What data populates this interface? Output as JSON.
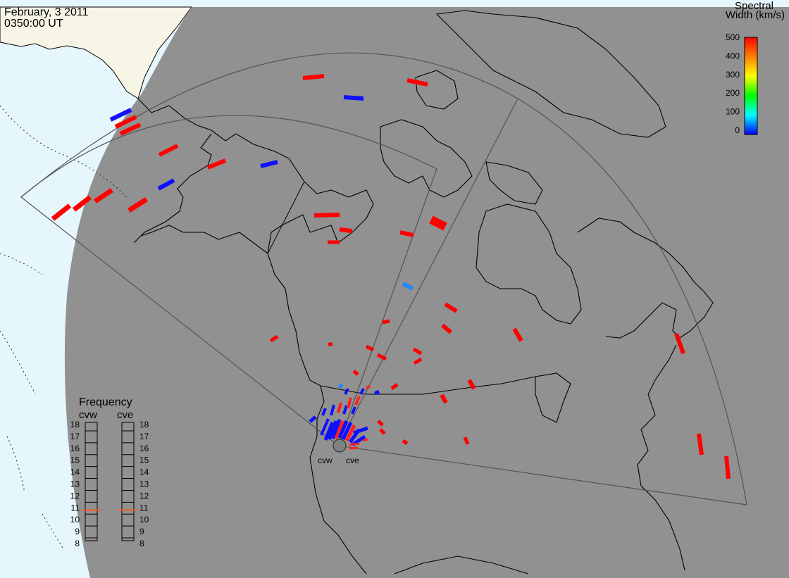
{
  "header": {
    "date": "February, 3 2011",
    "time": "0350:00 UT"
  },
  "colorbar": {
    "title_line1": "Spectral",
    "title_line2": "Width (km/s)",
    "range": [
      0,
      500
    ],
    "ticks": [
      "500",
      "400",
      "300",
      "200",
      "100",
      "0"
    ],
    "colors": [
      "#ff0000",
      "#ff8000",
      "#ffff00",
      "#00ff00",
      "#00ffff",
      "#0000ff"
    ]
  },
  "frequency_panel": {
    "title": "Frequency",
    "radar_left": "cvw",
    "radar_right": "cve",
    "ticks": [
      "18",
      "17",
      "16",
      "15",
      "14",
      "13",
      "12",
      "11",
      "10",
      "9",
      "8"
    ],
    "value_cvw_mhz": 10.8,
    "value_cve_mhz": 10.8,
    "marker_color": "#ff5a1e"
  },
  "radars": {
    "cvw_label": "cvw",
    "cve_label": "cve"
  },
  "colors": {
    "ocean": "#e6f6fd",
    "dayside_land": "#f6f5e6",
    "night": "#919191",
    "coast": "#000000",
    "fov": "#545454"
  }
}
